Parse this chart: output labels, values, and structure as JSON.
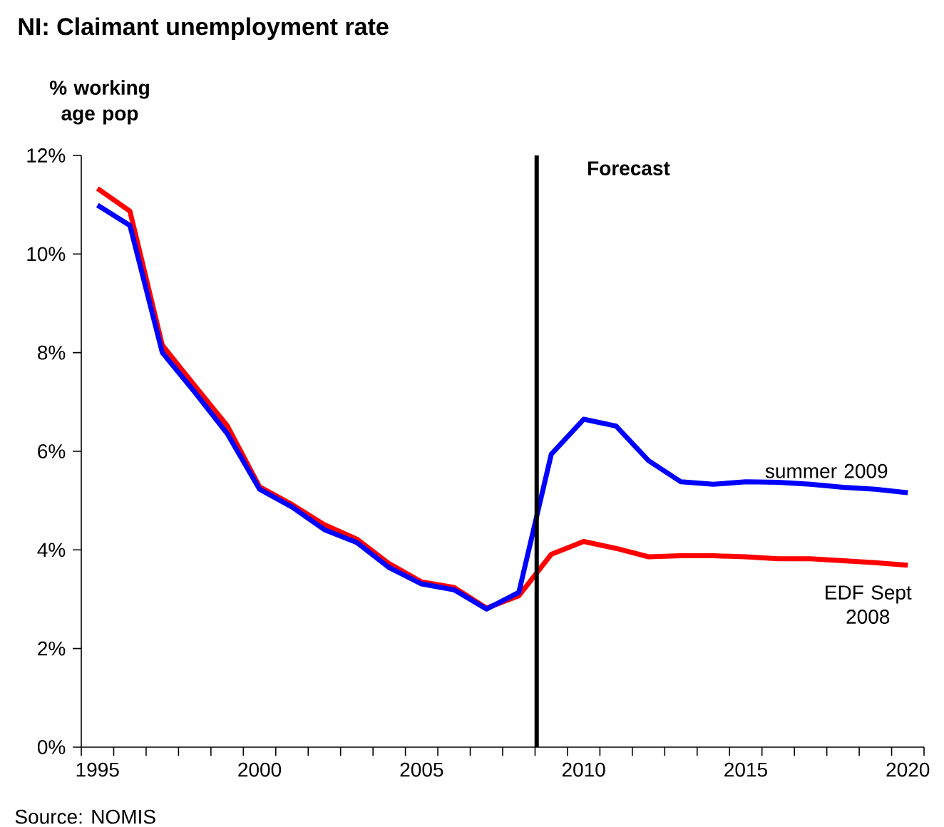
{
  "chart_data": {
    "type": "line",
    "title": "NI: Claimant unemployment rate",
    "ylabel": "% working age pop",
    "x": [
      1995,
      1996,
      1997,
      1998,
      1999,
      2000,
      2001,
      2002,
      2003,
      2004,
      2005,
      2006,
      2007,
      2008,
      2009,
      2010,
      2011,
      2012,
      2013,
      2014,
      2015,
      2016,
      2017,
      2018,
      2019,
      2020
    ],
    "series": [
      {
        "name": "EDF Sept 2008",
        "color": "#ff0000",
        "values": [
          11.33,
          10.87,
          8.15,
          7.33,
          6.52,
          5.28,
          4.92,
          4.51,
          4.22,
          3.72,
          3.35,
          3.24,
          2.82,
          3.07,
          3.91,
          4.17,
          4.03,
          3.86,
          3.88,
          3.88,
          3.86,
          3.82,
          3.82,
          3.78,
          3.74,
          3.69
        ]
      },
      {
        "name": "summer 2009",
        "color": "#0000ff",
        "values": [
          10.99,
          10.58,
          8.0,
          7.2,
          6.36,
          5.23,
          4.87,
          4.41,
          4.15,
          3.64,
          3.31,
          3.19,
          2.8,
          3.14,
          5.94,
          6.65,
          6.51,
          5.81,
          5.38,
          5.33,
          5.38,
          5.37,
          5.33,
          5.27,
          5.23,
          5.16
        ]
      }
    ],
    "xlim": [
      1994.5,
      2020.5
    ],
    "xticks": [
      1995,
      2000,
      2005,
      2010,
      2015,
      2020
    ],
    "ylim": [
      0,
      12
    ],
    "yticks": [
      {
        "value": 0,
        "label": "0%"
      },
      {
        "value": 2,
        "label": "2%"
      },
      {
        "value": 4,
        "label": "4%"
      },
      {
        "value": 6,
        "label": "6%"
      },
      {
        "value": 8,
        "label": "8%"
      },
      {
        "value": 10,
        "label": "10%"
      },
      {
        "value": 12,
        "label": "12%"
      }
    ],
    "ref_lines": [
      {
        "axis": "x",
        "value": 2008.55,
        "label": "Forecast",
        "color": "#000000"
      }
    ],
    "annotations": [
      "Source: NOMIS"
    ],
    "legend": false,
    "grid": false,
    "marker": "none",
    "line_style": "solid"
  }
}
